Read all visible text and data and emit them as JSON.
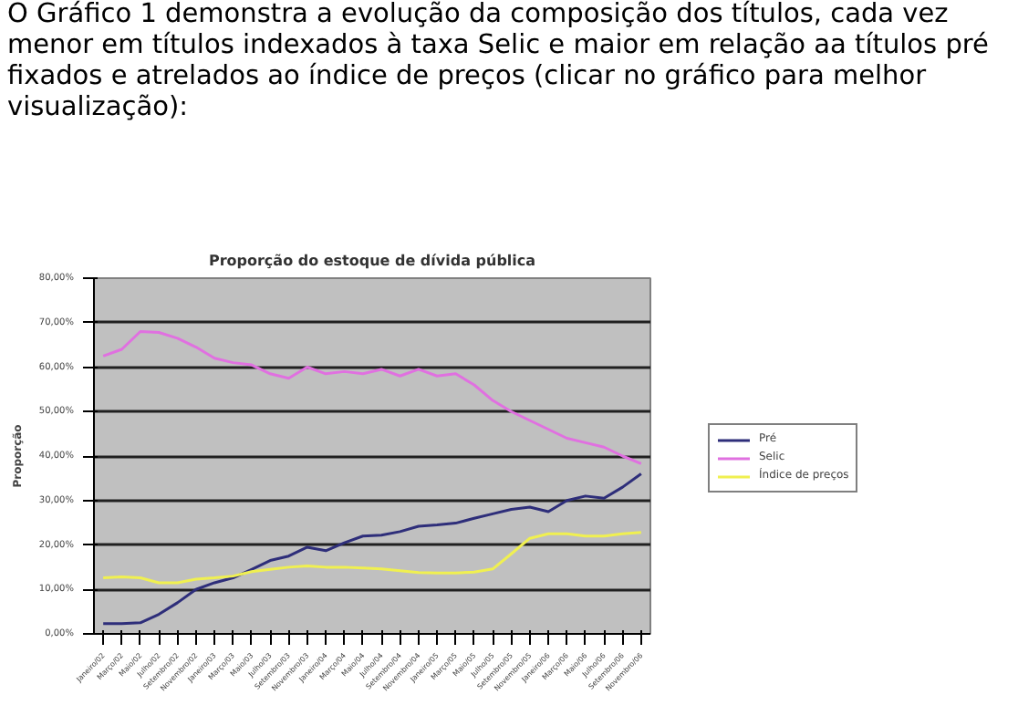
{
  "chart_data": {
    "type": "line",
    "title": "Proporção do estoque de dívida pública",
    "ylabel": "Proporção",
    "annotations": [
      "O Gráfico 1 demonstra a evolução da composição dos títulos, cada vez menor em títulos indexados à taxa Selic e maior em relação aa títulos pré fixados e atrelados ao índice de preços (clicar no gráfico para melhor visualização):"
    ],
    "categories": [
      "Janeiro/02",
      "Março/02",
      "Maio/02",
      "Julho/02",
      "Setembro/02",
      "Novembro/02",
      "Janeiro/03",
      "Março/03",
      "Maio/03",
      "Julho/03",
      "Setembro/03",
      "Novembro/03",
      "Janeiro/04",
      "Março/04",
      "Maio/04",
      "Julho/04",
      "Setembro/04",
      "Novembro/04",
      "Janeiro/05",
      "Março/05",
      "Maio/05",
      "Julho/05",
      "Setembro/05",
      "Novembro/05",
      "Janeiro/06",
      "Março/06",
      "Maio/06",
      "Julho/06",
      "Setembro/06",
      "Novembro/06"
    ],
    "series": [
      {
        "name": "Pré",
        "color": "#2e2e7a",
        "values": [
          2.3,
          2.3,
          2.5,
          4.4,
          7,
          10,
          11.5,
          12.6,
          14.5,
          16.5,
          17.5,
          19.5,
          18.7,
          20.5,
          22,
          22.2,
          23,
          24.2,
          24.5,
          24.9,
          26,
          27,
          28,
          28.5,
          27.5,
          30,
          31,
          30.5,
          33,
          36
        ]
      },
      {
        "name": "Selic",
        "color": "#e070e0",
        "values": [
          62.5,
          64,
          68,
          67.8,
          66.5,
          64.5,
          62,
          61,
          60.5,
          58.5,
          57.5,
          60,
          58.5,
          59,
          58.5,
          59.5,
          58,
          59.5,
          58,
          58.5,
          56,
          52.5,
          50,
          48,
          46,
          44,
          43,
          42,
          40,
          38.3
        ]
      },
      {
        "name": "Índice de preços",
        "color": "#f0f050",
        "values": [
          12.6,
          12.8,
          12.6,
          11.5,
          11.5,
          12.3,
          12.6,
          13,
          14,
          14.5,
          15,
          15.3,
          15,
          15,
          14.8,
          14.6,
          14.2,
          13.8,
          13.7,
          13.7,
          13.9,
          14.6,
          18,
          21.5,
          22.5,
          22.5,
          22,
          22,
          22.5,
          22.8
        ]
      }
    ],
    "ylim": [
      0,
      80
    ],
    "yticks": [
      {
        "value": 0,
        "label": "0,00%"
      },
      {
        "value": 10,
        "label": "10,00%"
      },
      {
        "value": 20,
        "label": "20,00%"
      },
      {
        "value": 30,
        "label": "30,00%"
      },
      {
        "value": 40,
        "label": "40,00%"
      },
      {
        "value": 50,
        "label": "50,00%"
      },
      {
        "value": 60,
        "label": "60,00%"
      },
      {
        "value": 70,
        "label": "70,00%"
      },
      {
        "value": 80,
        "label": "80,00%"
      }
    ],
    "grid": "y",
    "legend": "right"
  }
}
